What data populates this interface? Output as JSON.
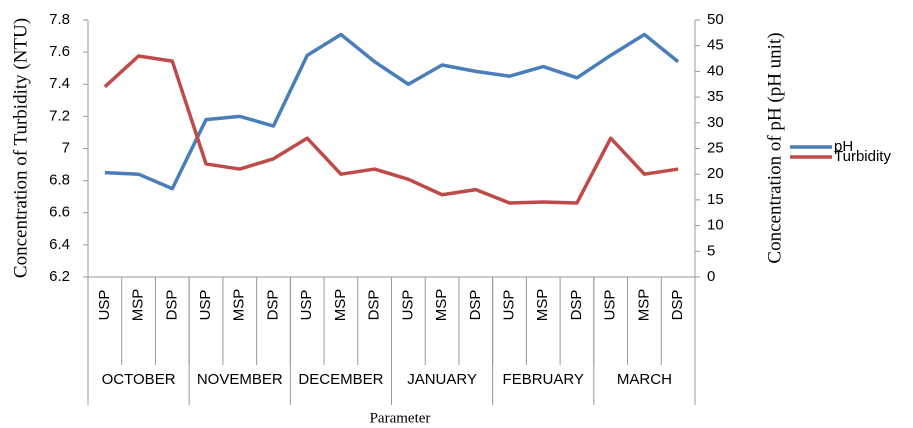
{
  "chart_data": {
    "type": "line",
    "x_label": "Parameter",
    "y_label": "Concentration of Turbidity (NTU)",
    "y2_label": "Concentration of pH (pH unit)",
    "categories": [
      "USP",
      "MSP",
      "DSP",
      "USP",
      "MSP",
      "DSP",
      "USP",
      "MSP",
      "DSP",
      "USP",
      "MSP",
      "DSP",
      "USP",
      "MSP",
      "DSP",
      "USP",
      "MSP",
      "DSP"
    ],
    "category_groups": [
      "OCTOBER",
      "NOVEMBER",
      "DECEMBER",
      "JANUARY",
      "FEBRUARY",
      "MARCH"
    ],
    "series": [
      {
        "name": "pH",
        "color": "#4a7ebb",
        "values": [
          6.85,
          6.84,
          6.75,
          7.18,
          7.2,
          7.14,
          7.58,
          7.71,
          7.54,
          7.4,
          7.52,
          7.48,
          7.45,
          7.51,
          7.44,
          7.58,
          7.71,
          7.54
        ]
      },
      {
        "name": "Turbidity",
        "color": "#be4b48",
        "axis": "y2",
        "values": [
          37,
          43,
          42,
          22,
          21,
          23,
          27,
          20,
          21,
          19,
          16,
          17,
          14.4,
          14.6,
          14.4,
          27,
          20,
          21
        ]
      }
    ],
    "ylim": [
      6.2,
      7.8
    ],
    "yticks": [
      6.2,
      6.4,
      6.6,
      6.8,
      7,
      7.2,
      7.4,
      7.6,
      7.8
    ],
    "y2lim": [
      0,
      50
    ],
    "y2ticks": [
      0,
      5,
      10,
      15,
      20,
      25,
      30,
      35,
      40,
      45,
      50
    ],
    "legend": "right",
    "grid": false
  }
}
